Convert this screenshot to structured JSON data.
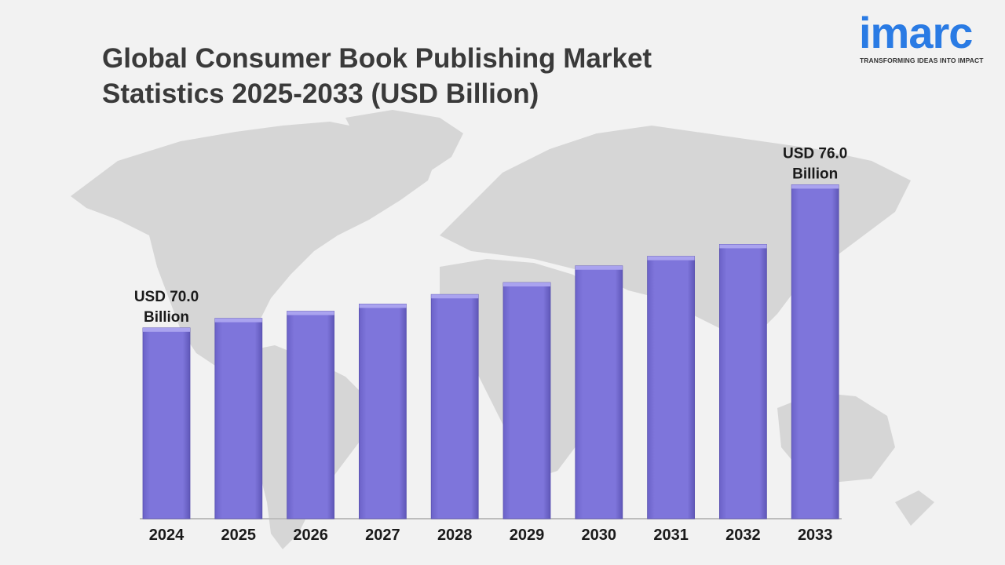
{
  "title": {
    "line1": "Global Consumer Book Publishing Market",
    "line2": "Statistics 2025-2033 (USD Billion)"
  },
  "logo": {
    "word": "imarc",
    "tagline": "TRANSFORMING IDEAS INTO IMPACT"
  },
  "colors": {
    "bar": "#7e75db",
    "bar_top": "#aaa3ef",
    "map": "#d6d6d6",
    "background": "#f2f2f2",
    "title": "#3a3a3a",
    "brand": "#2a7be4"
  },
  "chart_data": {
    "type": "bar",
    "categories": [
      "2024",
      "2025",
      "2026",
      "2027",
      "2028",
      "2029",
      "2030",
      "2031",
      "2032",
      "2033"
    ],
    "values": [
      70.0,
      70.4,
      70.7,
      71.0,
      71.4,
      71.9,
      72.6,
      73.0,
      73.5,
      76.0
    ],
    "title": "Global Consumer Book Publishing Market Statistics 2025-2033 (USD Billion)",
    "xlabel": "",
    "ylabel": "",
    "ylim": [
      62.0,
      77.0
    ],
    "grid": false,
    "legend": "none",
    "annotations": [
      {
        "category": "2024",
        "line1": "USD 70.0",
        "line2": "Billion"
      },
      {
        "category": "2033",
        "line1": "USD 76.0",
        "line2": "Billion"
      }
    ]
  }
}
